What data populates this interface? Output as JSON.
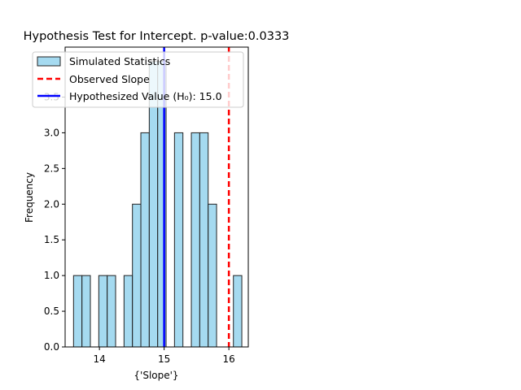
{
  "chart_data": {
    "type": "histogram",
    "title": "Hypothesis Test for Intercept. p-value:0.0333",
    "xlabel": "{'Slope'}",
    "ylabel": "Frequency",
    "xlim": [
      13.47,
      16.3
    ],
    "ylim": [
      0,
      4.2
    ],
    "grid": false,
    "legend_position": "upper-left",
    "xticks": [
      14,
      15,
      16
    ],
    "xtick_labels": [
      "14",
      "15",
      "16"
    ],
    "yticks": [
      0.0,
      0.5,
      1.0,
      1.5,
      2.0,
      2.5,
      3.0,
      3.5
    ],
    "ytick_labels": [
      "0.0",
      "0.5",
      "1.0",
      "1.5",
      "2.0",
      "2.5",
      "3.0",
      "3.5"
    ],
    "bins": {
      "start": 13.6,
      "width": 0.13,
      "counts": [
        1,
        1,
        0,
        1,
        1,
        0,
        1,
        2,
        3,
        4,
        4,
        0,
        3,
        0,
        3,
        3,
        2,
        0,
        0,
        1
      ]
    },
    "series": [
      {
        "name": "Simulated Statistics",
        "kind": "histogram",
        "color": "#87ceeb",
        "edgecolor": "#222222"
      },
      {
        "name": "Observed Slope",
        "kind": "vline",
        "x": 16.0,
        "color": "#ff0000",
        "linestyle": "dashed"
      },
      {
        "name": "Hypothesized Value (H₀): 15.0",
        "kind": "vline",
        "x": 15.0,
        "color": "#0000ff",
        "linestyle": "solid"
      }
    ]
  }
}
